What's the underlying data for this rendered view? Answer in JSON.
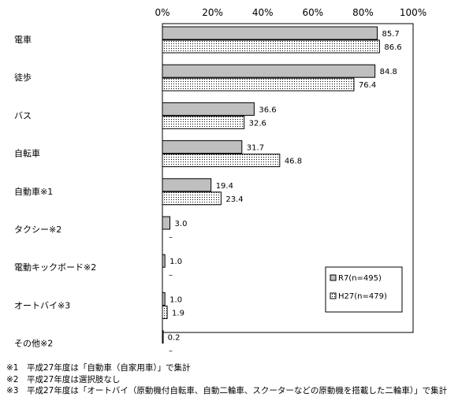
{
  "chart_data": {
    "type": "bar",
    "orientation": "horizontal",
    "categories": [
      "電車",
      "徒歩",
      "バス",
      "自転車",
      "自動車※1",
      "タクシー※2",
      "電動キックボード※2",
      "オートバイ※3",
      "その他※2"
    ],
    "series": [
      {
        "name": "R7(n=495)",
        "values": [
          85.7,
          84.8,
          36.6,
          31.7,
          19.4,
          3.0,
          1.0,
          1.0,
          0.2
        ],
        "labels": [
          "85.7",
          "84.8",
          "36.6",
          "31.7",
          "19.4",
          "3.0",
          "1.0",
          "1.0",
          "0.2"
        ],
        "fill": "#bfbfbf"
      },
      {
        "name": "H27(n=479)",
        "values": [
          86.6,
          76.4,
          32.6,
          46.8,
          23.4,
          null,
          null,
          1.9,
          null
        ],
        "labels": [
          "86.6",
          "76.4",
          "32.6",
          "46.8",
          "23.4",
          "–",
          "–",
          "1.9",
          "–"
        ],
        "fill": "dotted"
      }
    ],
    "xlim": [
      0,
      100
    ],
    "xticks": [
      "0%",
      "20%",
      "40%",
      "60%",
      "80%",
      "100%"
    ],
    "grid": false,
    "legend": "bottom-right"
  },
  "notes": [
    "※1　平成27年度は「自動車（自家用車）」で集計",
    "※2　平成27年度は選択肢なし",
    "※3　平成27年度は「オートバイ（原動機付自転車、自動二輪車、スクーターなどの原動機を搭載した二輪車）」で集計"
  ]
}
